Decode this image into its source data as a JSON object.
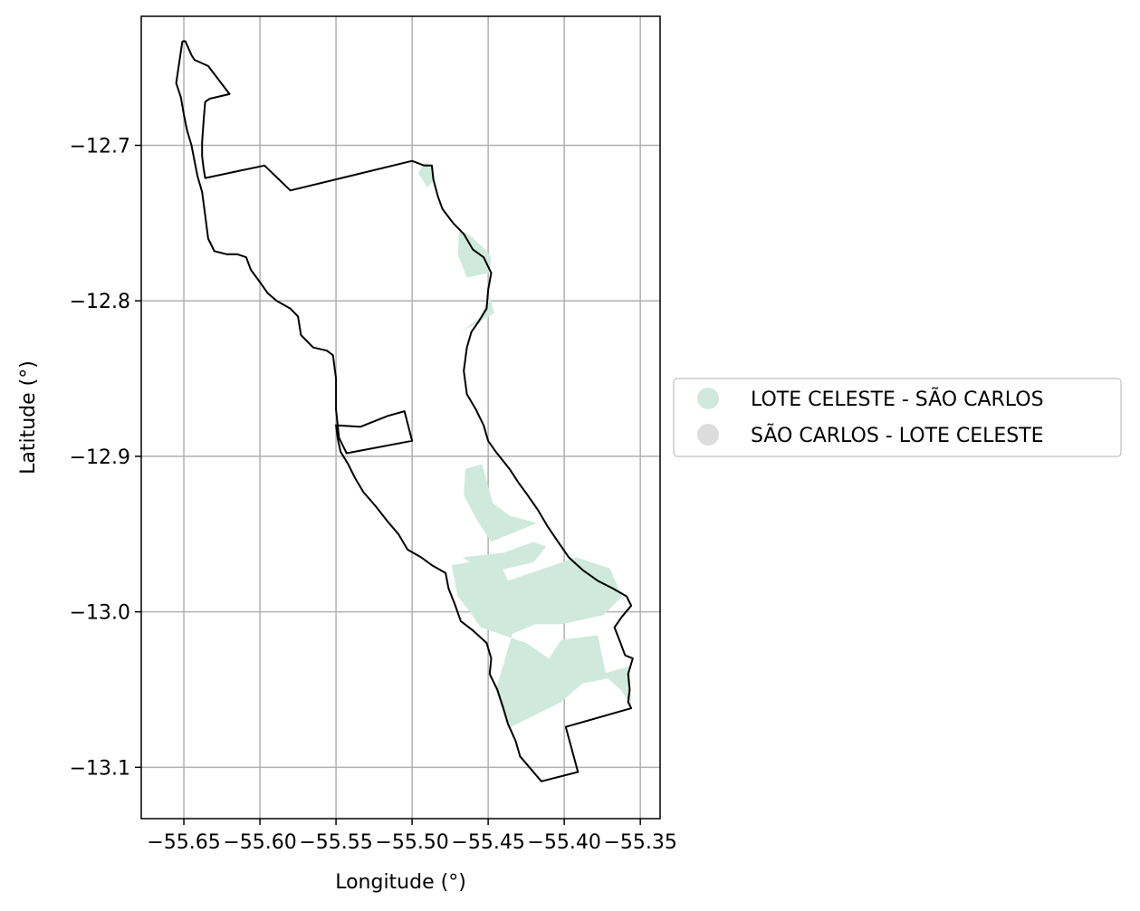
{
  "chart_data": {
    "type": "map",
    "xlabel": "Longitude (°)",
    "ylabel": "Latitude (°)",
    "xlim": [
      -55.678,
      -55.337
    ],
    "ylim": [
      -13.133,
      -12.617
    ],
    "x_ticks": [
      -55.65,
      -55.6,
      -55.55,
      -55.5,
      -55.45,
      -55.4,
      -55.35
    ],
    "x_tick_labels": [
      "−55.65",
      "−55.60",
      "−55.55",
      "−55.50",
      "−55.45",
      "−55.40",
      "−55.35"
    ],
    "y_ticks": [
      -12.7,
      -12.8,
      -12.9,
      -13.0,
      -13.1
    ],
    "y_tick_labels": [
      "−12.7",
      "−12.8",
      "−12.9",
      "−13.0",
      "−13.1"
    ],
    "grid": true,
    "legend_position": "right",
    "legend": [
      {
        "label": "LOTE CELESTE  - SÃO CARLOS",
        "color": "#cfeadc"
      },
      {
        "label": "SÃO CARLOS - LOTE CELESTE",
        "color": "#dcdcdc"
      }
    ],
    "fill_color": "#cfeadc",
    "boundary_color": "#000000",
    "boundary": [
      [
        -55.651,
        -12.633
      ],
      [
        -55.649,
        -12.633
      ],
      [
        -55.645,
        -12.642
      ],
      [
        -55.643,
        -12.645
      ],
      [
        -55.634,
        -12.649
      ],
      [
        -55.62,
        -12.667
      ],
      [
        -55.633,
        -12.67
      ],
      [
        -55.636,
        -12.672
      ],
      [
        -55.637,
        -12.684
      ],
      [
        -55.638,
        -12.698
      ],
      [
        -55.638,
        -12.707
      ],
      [
        -55.637,
        -12.715
      ],
      [
        -55.636,
        -12.721
      ],
      [
        -55.597,
        -12.713
      ],
      [
        -55.58,
        -12.729
      ],
      [
        -55.5,
        -12.71
      ],
      [
        -55.492,
        -12.713
      ],
      [
        -55.487,
        -12.713
      ],
      [
        -55.486,
        -12.722
      ],
      [
        -55.483,
        -12.733
      ],
      [
        -55.48,
        -12.741
      ],
      [
        -55.473,
        -12.75
      ],
      [
        -55.466,
        -12.757
      ],
      [
        -55.46,
        -12.767
      ],
      [
        -55.453,
        -12.772
      ],
      [
        -55.45,
        -12.778
      ],
      [
        -55.448,
        -12.782
      ],
      [
        -55.45,
        -12.793
      ],
      [
        -55.451,
        -12.805
      ],
      [
        -55.456,
        -12.813
      ],
      [
        -55.461,
        -12.82
      ],
      [
        -55.464,
        -12.83
      ],
      [
        -55.466,
        -12.845
      ],
      [
        -55.464,
        -12.86
      ],
      [
        -55.458,
        -12.87
      ],
      [
        -55.453,
        -12.88
      ],
      [
        -55.45,
        -12.89
      ],
      [
        -55.445,
        -12.897
      ],
      [
        -55.436,
        -12.908
      ],
      [
        -55.43,
        -12.917
      ],
      [
        -55.424,
        -12.925
      ],
      [
        -55.417,
        -12.935
      ],
      [
        -55.411,
        -12.945
      ],
      [
        -55.404,
        -12.955
      ],
      [
        -55.397,
        -12.965
      ],
      [
        -55.388,
        -12.973
      ],
      [
        -55.378,
        -12.98
      ],
      [
        -55.368,
        -12.985
      ],
      [
        -55.359,
        -12.99
      ],
      [
        -55.356,
        -12.996
      ],
      [
        -55.362,
        -13.003
      ],
      [
        -55.367,
        -13.01
      ],
      [
        -55.363,
        -13.02
      ],
      [
        -55.36,
        -13.028
      ],
      [
        -55.355,
        -13.03
      ],
      [
        -55.358,
        -13.04
      ],
      [
        -55.357,
        -13.05
      ],
      [
        -55.358,
        -13.058
      ],
      [
        -55.356,
        -13.062
      ],
      [
        -55.399,
        -13.074
      ],
      [
        -55.391,
        -13.103
      ],
      [
        -55.415,
        -13.109
      ],
      [
        -55.429,
        -13.093
      ],
      [
        -55.432,
        -13.083
      ],
      [
        -55.437,
        -13.072
      ],
      [
        -55.44,
        -13.062
      ],
      [
        -55.444,
        -13.05
      ],
      [
        -55.449,
        -13.04
      ],
      [
        -55.448,
        -13.03
      ],
      [
        -55.451,
        -13.02
      ],
      [
        -55.46,
        -13.012
      ],
      [
        -55.468,
        -13.006
      ],
      [
        -55.472,
        -12.995
      ],
      [
        -55.476,
        -12.985
      ],
      [
        -55.478,
        -12.975
      ],
      [
        -55.487,
        -12.97
      ],
      [
        -55.494,
        -12.965
      ],
      [
        -55.503,
        -12.96
      ],
      [
        -55.509,
        -12.95
      ],
      [
        -55.516,
        -12.942
      ],
      [
        -55.524,
        -12.932
      ],
      [
        -55.532,
        -12.923
      ],
      [
        -55.538,
        -12.913
      ],
      [
        -55.542,
        -12.905
      ],
      [
        -55.547,
        -12.897
      ],
      [
        -55.549,
        -12.888
      ],
      [
        -55.55,
        -12.88
      ],
      [
        -55.534,
        -12.881
      ],
      [
        -55.516,
        -12.874
      ],
      [
        -55.505,
        -12.871
      ],
      [
        -55.5,
        -12.89
      ],
      [
        -55.543,
        -12.898
      ],
      [
        -55.548,
        -12.888
      ],
      [
        -55.55,
        -12.87
      ],
      [
        -55.55,
        -12.85
      ],
      [
        -55.552,
        -12.835
      ],
      [
        -55.556,
        -12.832
      ],
      [
        -55.565,
        -12.83
      ],
      [
        -55.573,
        -12.822
      ],
      [
        -55.575,
        -12.81
      ],
      [
        -55.58,
        -12.805
      ],
      [
        -55.589,
        -12.8
      ],
      [
        -55.595,
        -12.795
      ],
      [
        -55.6,
        -12.788
      ],
      [
        -55.606,
        -12.78
      ],
      [
        -55.609,
        -12.772
      ],
      [
        -55.615,
        -12.77
      ],
      [
        -55.622,
        -12.77
      ],
      [
        -55.63,
        -12.768
      ],
      [
        -55.634,
        -12.76
      ],
      [
        -55.636,
        -12.745
      ],
      [
        -55.638,
        -12.73
      ],
      [
        -55.641,
        -12.72
      ],
      [
        -55.643,
        -12.71
      ],
      [
        -55.645,
        -12.7
      ],
      [
        -55.648,
        -12.69
      ],
      [
        -55.65,
        -12.68
      ],
      [
        -55.652,
        -12.669
      ],
      [
        -55.655,
        -12.66
      ],
      [
        -55.651,
        -12.633
      ]
    ],
    "filled_regions": [
      [
        [
          -55.492,
          -12.711
        ],
        [
          -55.486,
          -12.713
        ],
        [
          -55.485,
          -12.722
        ],
        [
          -55.49,
          -12.727
        ],
        [
          -55.496,
          -12.718
        ]
      ],
      [
        [
          -55.469,
          -12.754
        ],
        [
          -55.462,
          -12.758
        ],
        [
          -55.453,
          -12.766
        ],
        [
          -55.448,
          -12.772
        ],
        [
          -55.449,
          -12.782
        ],
        [
          -55.464,
          -12.785
        ],
        [
          -55.47,
          -12.77
        ]
      ],
      [
        [
          -55.456,
          -12.811
        ],
        [
          -55.449,
          -12.797
        ],
        [
          -55.446,
          -12.808
        ],
        [
          -55.468,
          -12.82
        ]
      ],
      [
        [
          -55.465,
          -12.908
        ],
        [
          -55.454,
          -12.905
        ],
        [
          -55.447,
          -12.93
        ],
        [
          -55.436,
          -12.938
        ],
        [
          -55.418,
          -12.943
        ],
        [
          -55.448,
          -12.955
        ],
        [
          -55.458,
          -12.94
        ],
        [
          -55.466,
          -12.925
        ]
      ],
      [
        [
          -55.467,
          -12.965
        ],
        [
          -55.44,
          -12.962
        ],
        [
          -55.42,
          -12.955
        ],
        [
          -55.412,
          -12.958
        ],
        [
          -55.42,
          -12.968
        ],
        [
          -55.45,
          -12.975
        ]
      ],
      [
        [
          -55.474,
          -12.97
        ],
        [
          -55.444,
          -12.965
        ],
        [
          -55.437,
          -12.98
        ],
        [
          -55.392,
          -12.965
        ],
        [
          -55.37,
          -12.972
        ],
        [
          -55.362,
          -12.99
        ],
        [
          -55.374,
          -13.002
        ],
        [
          -55.402,
          -13.008
        ],
        [
          -55.419,
          -13.008
        ],
        [
          -55.434,
          -13.014
        ],
        [
          -55.445,
          -13.05
        ],
        [
          -55.437,
          -13.075
        ],
        [
          -55.402,
          -13.058
        ],
        [
          -55.388,
          -13.046
        ],
        [
          -55.372,
          -13.043
        ],
        [
          -55.378,
          -13.015
        ],
        [
          -55.402,
          -13.018
        ],
        [
          -55.41,
          -13.03
        ],
        [
          -55.425,
          -13.02
        ],
        [
          -55.455,
          -13.01
        ],
        [
          -55.462,
          -13.0
        ],
        [
          -55.47,
          -12.99
        ]
      ],
      [
        [
          -55.357,
          -13.035
        ],
        [
          -55.375,
          -13.04
        ],
        [
          -55.363,
          -13.05
        ],
        [
          -55.356,
          -13.06
        ]
      ]
    ]
  }
}
